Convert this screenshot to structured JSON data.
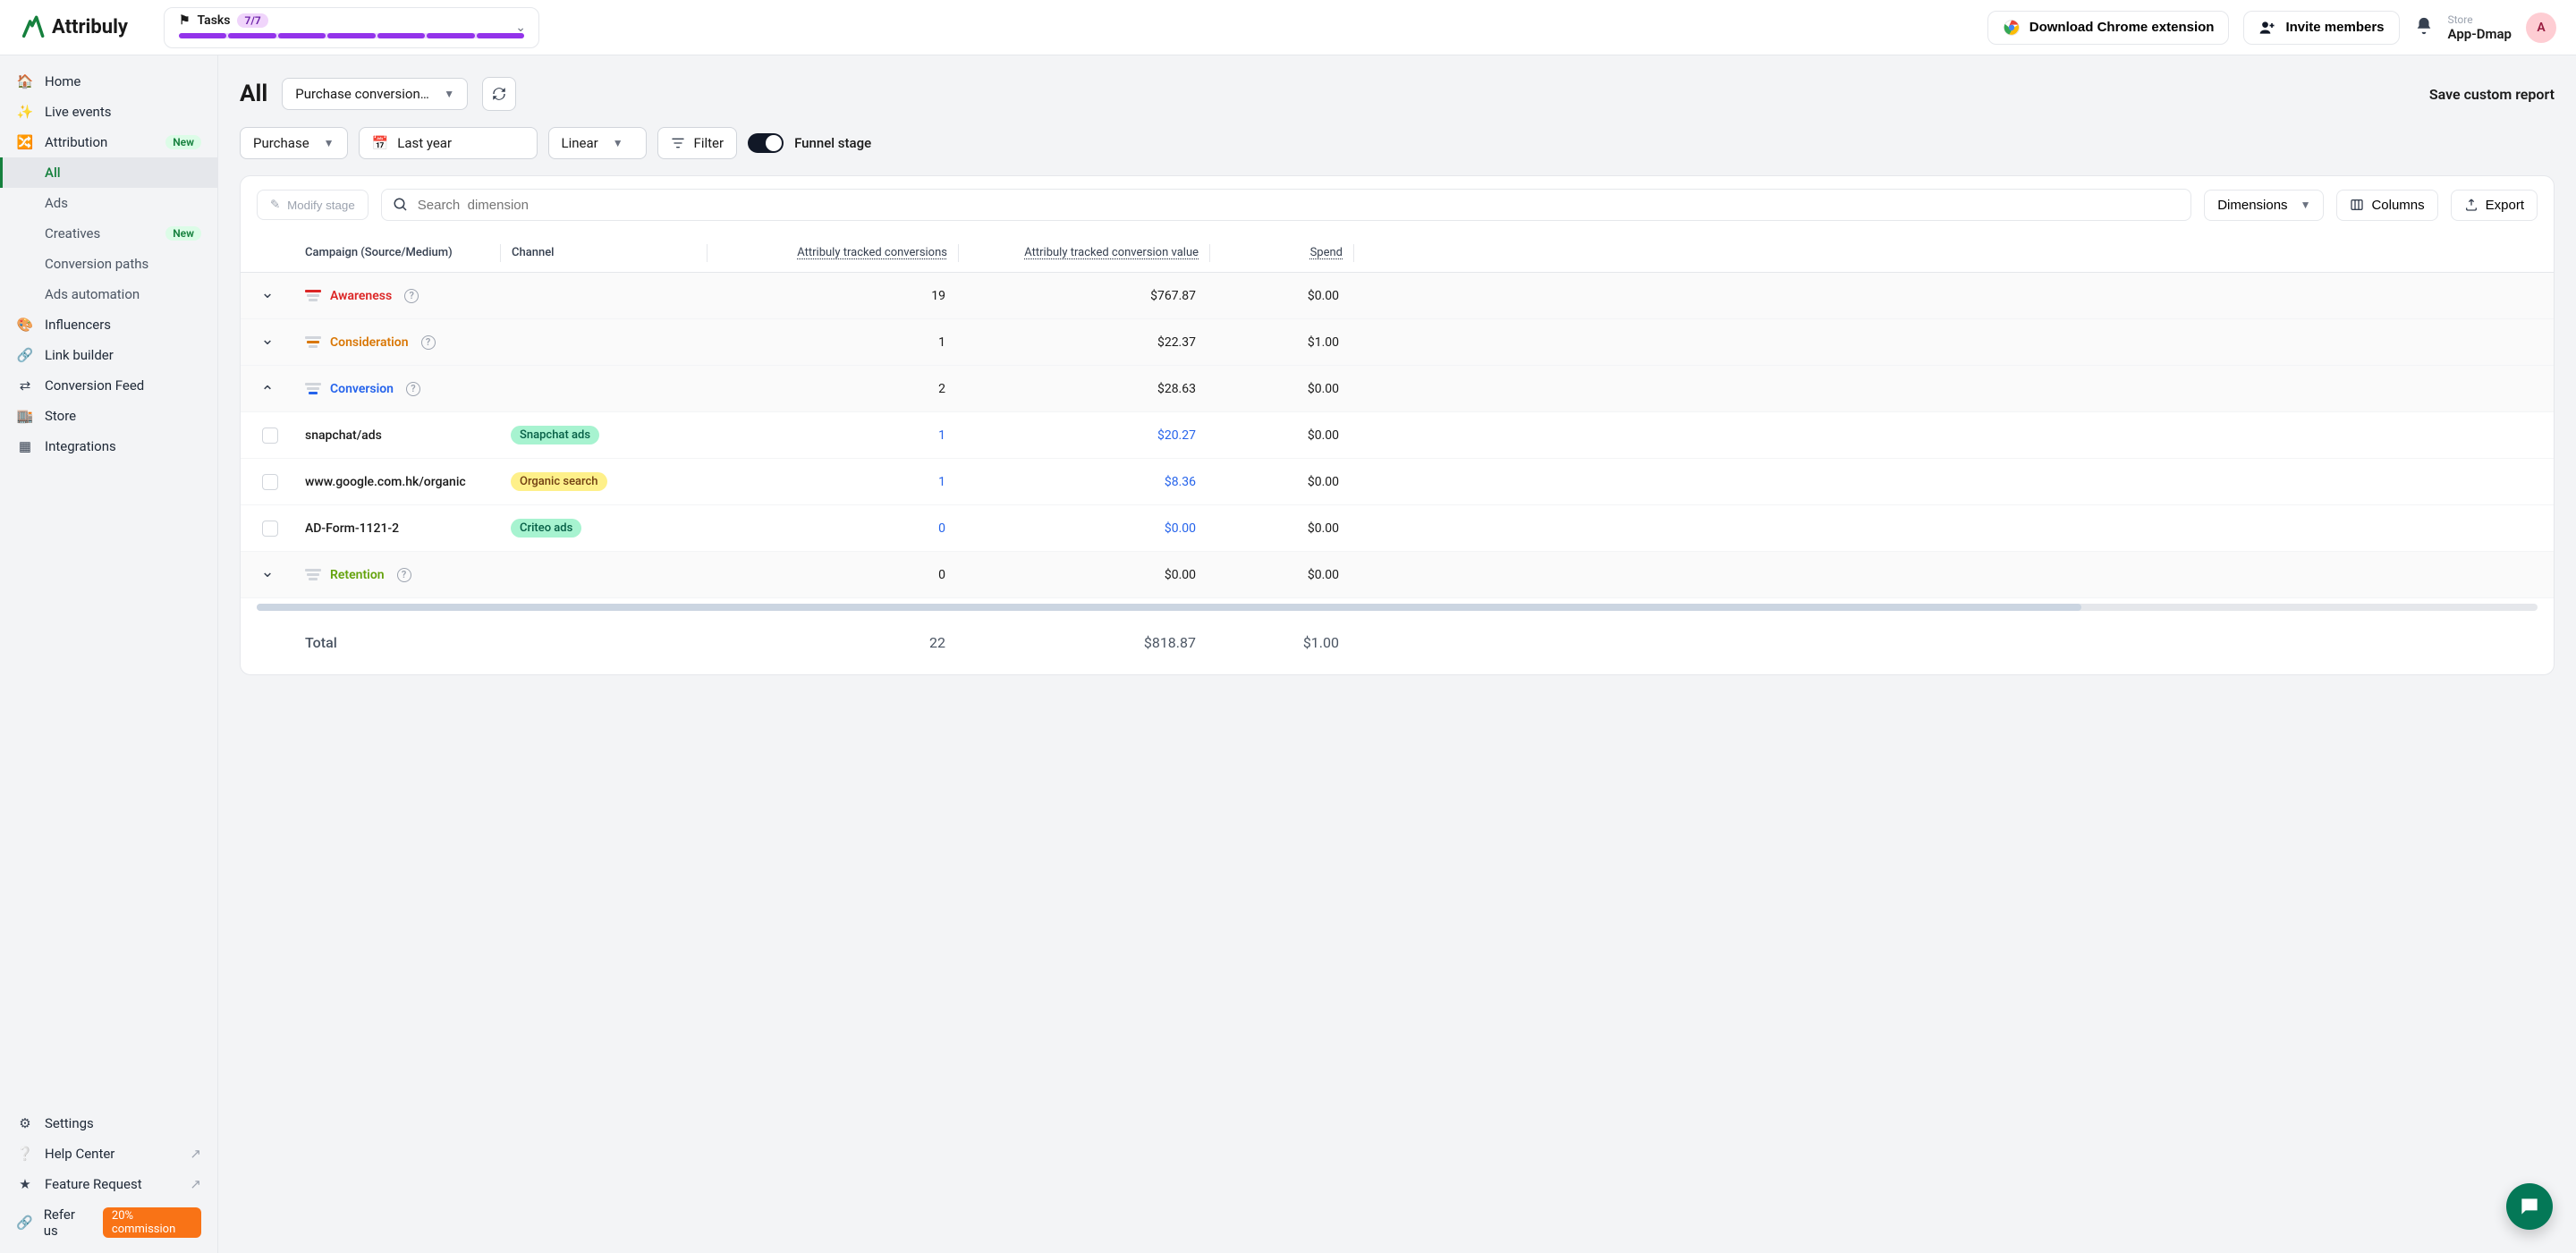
{
  "brand": {
    "name": "Attribuly"
  },
  "header": {
    "tasks_label": "Tasks",
    "tasks_badge": "7/7",
    "tasks_segments": 7,
    "download_ext": "Download Chrome extension",
    "invite": "Invite members",
    "store_label": "Store",
    "store_name": "App-Dmap",
    "avatar_initial": "A"
  },
  "sidebar": {
    "items": [
      {
        "label": "Home",
        "icon": "home"
      },
      {
        "label": "Live events",
        "icon": "sparkle"
      },
      {
        "label": "Attribution",
        "icon": "share",
        "badge": "New"
      }
    ],
    "sub": [
      {
        "label": "All",
        "active": true
      },
      {
        "label": "Ads"
      },
      {
        "label": "Creatives",
        "badge": "New"
      },
      {
        "label": "Conversion paths"
      },
      {
        "label": "Ads automation"
      }
    ],
    "items2": [
      {
        "label": "Influencers",
        "icon": "palette"
      },
      {
        "label": "Link builder",
        "icon": "link"
      },
      {
        "label": "Conversion Feed",
        "icon": "swap"
      },
      {
        "label": "Store",
        "icon": "store"
      },
      {
        "label": "Integrations",
        "icon": "grid"
      }
    ],
    "bottom": {
      "settings": "Settings",
      "help": "Help Center",
      "feature": "Feature Request",
      "refer": "Refer us",
      "refer_badge": "20% commission",
      "refer_badge_bg": "#f97316"
    }
  },
  "page": {
    "title": "All",
    "report_select": "Purchase conversions, by",
    "save": "Save custom report"
  },
  "filters": {
    "metric": "Purchase",
    "date": "Last year",
    "model": "Linear",
    "filter_label": "Filter",
    "toggle_label": "Funnel stage"
  },
  "toolbar": {
    "modify": "Modify stage",
    "search_placeholder": "Search  dimension",
    "dimensions": "Dimensions",
    "columns": "Columns",
    "export": "Export"
  },
  "columns": {
    "campaign": "Campaign (Source/Medium)",
    "channel": "Channel",
    "conv": "Attribuly tracked conversions",
    "val": "Attribuly tracked conversion value",
    "spend": "Spend"
  },
  "stages": [
    {
      "name": "Awareness",
      "color": "#dc2626",
      "expanded": false,
      "highlight": 1,
      "conv": "19",
      "val": "$767.87",
      "spend": "$0.00"
    },
    {
      "name": "Consideration",
      "color": "#d97706",
      "expanded": false,
      "highlight": 2,
      "conv": "1",
      "val": "$22.37",
      "spend": "$1.00"
    },
    {
      "name": "Conversion",
      "color": "#2563eb",
      "expanded": true,
      "highlight": 3,
      "conv": "2",
      "val": "$28.63",
      "spend": "$0.00",
      "rows": [
        {
          "campaign": "snapchat/ads",
          "channel": "Snapchat ads",
          "chip_bg": "#a7f3d0",
          "chip_fg": "#065f46",
          "conv": "1",
          "val": "$20.27",
          "spend": "$0.00",
          "link": true
        },
        {
          "campaign": "www.google.com.hk/organic",
          "channel": "Organic search",
          "chip_bg": "#fef08a",
          "chip_fg": "#713f12",
          "conv": "1",
          "val": "$8.36",
          "spend": "$0.00",
          "link": true
        },
        {
          "campaign": "AD-Form-1121-2",
          "channel": "Criteo ads",
          "chip_bg": "#a7f3d0",
          "chip_fg": "#065f46",
          "conv": "0",
          "val": "$0.00",
          "spend": "$0.00",
          "link": true
        }
      ]
    },
    {
      "name": "Retention",
      "color": "#65a30d",
      "expanded": false,
      "highlight": 0,
      "conv": "0",
      "val": "$0.00",
      "spend": "$0.00"
    }
  ],
  "total": {
    "label": "Total",
    "conv": "22",
    "val": "$818.87",
    "spend": "$1.00"
  },
  "scroll_thumb_pct": 80
}
